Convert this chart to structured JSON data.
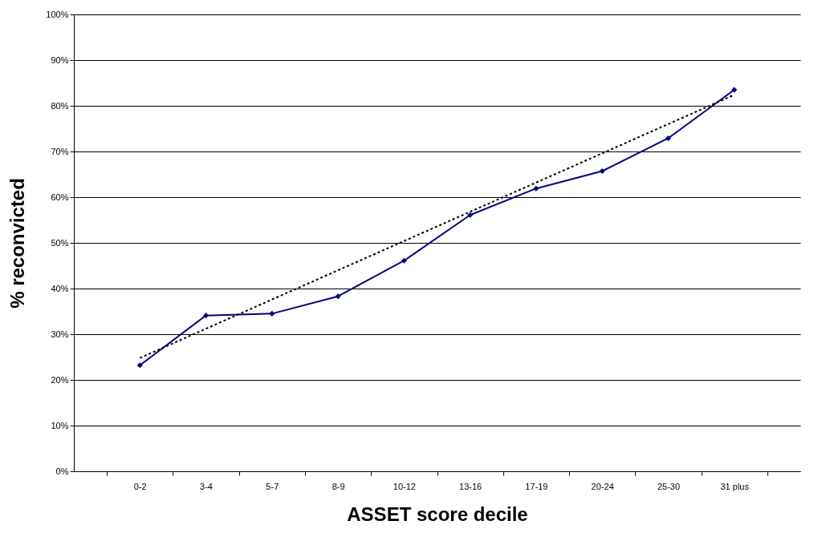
{
  "chart_data": {
    "type": "line",
    "xlabel": "ASSET score decile",
    "ylabel": "% reconvicted",
    "categories": [
      "0-2",
      "3-4",
      "5-7",
      "8-9",
      "10-12",
      "13-16",
      "17-19",
      "20-24",
      "25-30",
      "31 plus"
    ],
    "series": [
      {
        "color": "#000080",
        "marker": "diamond",
        "line_style": "solid",
        "values": [
          23.2,
          34.1,
          34.5,
          38.3,
          46.1,
          56.1,
          61.9,
          65.7,
          72.9,
          83.5
        ]
      },
      {
        "type": "line",
        "color": "#000000",
        "marker": "none",
        "line_style": "dotted",
        "x": [
          "0-2",
          "31 plus"
        ],
        "values": [
          24.8,
          82.4
        ]
      }
    ],
    "ylim": [
      0,
      100
    ],
    "yticks": [
      {
        "value": 0,
        "label": "0%"
      },
      {
        "value": 10,
        "label": "10%"
      },
      {
        "value": 20,
        "label": "20%"
      },
      {
        "value": 30,
        "label": "30%"
      },
      {
        "value": 40,
        "label": "40%"
      },
      {
        "value": 50,
        "label": "50%"
      },
      {
        "value": 60,
        "label": "60%"
      },
      {
        "value": 70,
        "label": "70%"
      },
      {
        "value": 80,
        "label": "80%"
      },
      {
        "value": 90,
        "label": "90%"
      },
      {
        "value": 100,
        "label": "100%"
      }
    ],
    "grid": "y"
  }
}
